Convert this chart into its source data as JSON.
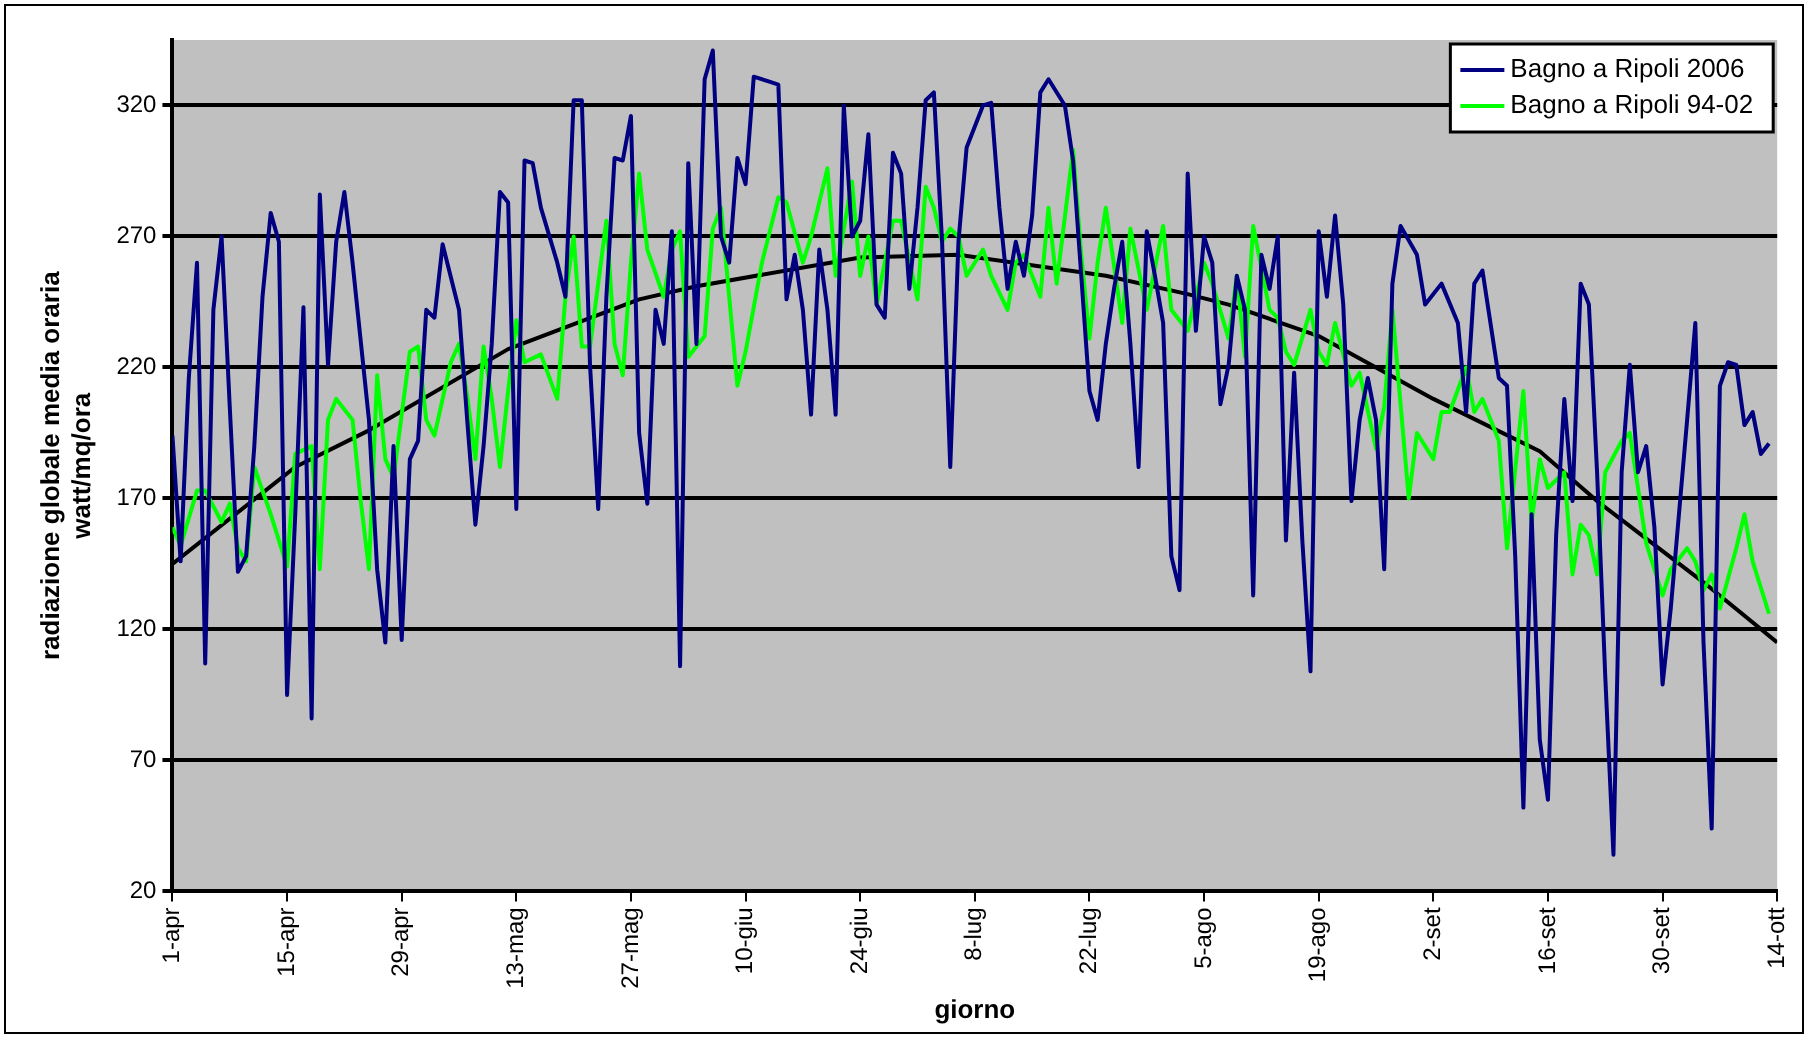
{
  "chart_data": {
    "type": "line",
    "xlabel": "giorno",
    "ylabel": "radiazione globale media oraria\nwatt/mq/ora",
    "xlim": [
      "--04-01",
      "--10-14"
    ],
    "xticks": [
      {
        "value": "--04-01",
        "label": "1-apr"
      },
      {
        "value": "--04-15",
        "label": "15-apr"
      },
      {
        "value": "--04-29",
        "label": "29-apr"
      },
      {
        "value": "--05-13",
        "label": "13-mag"
      },
      {
        "value": "--05-27",
        "label": "27-mag"
      },
      {
        "value": "--06-10",
        "label": "10-giu"
      },
      {
        "value": "--06-24",
        "label": "24-giu"
      },
      {
        "value": "--07-08",
        "label": "8-lug"
      },
      {
        "value": "--07-22",
        "label": "22-lug"
      },
      {
        "value": "--08-05",
        "label": "5-ago"
      },
      {
        "value": "--08-19",
        "label": "19-ago"
      },
      {
        "value": "--09-02",
        "label": "2-set"
      },
      {
        "value": "--09-16",
        "label": "16-set"
      },
      {
        "value": "--09-30",
        "label": "30-set"
      },
      {
        "value": "--10-14",
        "label": "14-ott"
      }
    ],
    "ylim": [
      20,
      345
    ],
    "yticks": [
      20,
      70,
      120,
      170,
      220,
      270,
      320
    ],
    "grid": "y",
    "legend": "top right",
    "marker": "none",
    "line_style": "solid",
    "series": [
      {
        "name": "Bagno a Ripoli 2006",
        "color": "#000080",
        "x": [
          "--04-01",
          "--04-02",
          "--04-03",
          "--04-04",
          "--04-05",
          "--04-06",
          "--04-07",
          "--04-08",
          "--04-09",
          "--04-10",
          "--04-11",
          "--04-12",
          "--04-13",
          "--04-14",
          "--04-15",
          "--04-16",
          "--04-17",
          "--04-18",
          "--04-19",
          "--04-20",
          "--04-21",
          "--04-22",
          "--04-23",
          "--04-25",
          "--04-26",
          "--04-27",
          "--04-28",
          "--04-29",
          "--04-30",
          "--05-01",
          "--05-02",
          "--05-03",
          "--05-04",
          "--05-06",
          "--05-07",
          "--05-08",
          "--05-09",
          "--05-10",
          "--05-11",
          "--05-12",
          "--05-13",
          "--05-14",
          "--05-15",
          "--05-16",
          "--05-18",
          "--05-19",
          "--05-20",
          "--05-21",
          "--05-22",
          "--05-23",
          "--05-24",
          "--05-25",
          "--05-26",
          "--05-27",
          "--05-28",
          "--05-29",
          "--05-30",
          "--05-31",
          "--06-01",
          "--06-02",
          "--06-03",
          "--06-04",
          "--06-05",
          "--06-06",
          "--06-07",
          "--06-08",
          "--06-09",
          "--06-10",
          "--06-11",
          "--06-13",
          "--06-14",
          "--06-15",
          "--06-16",
          "--06-17",
          "--06-18",
          "--06-19",
          "--06-20",
          "--06-21",
          "--06-22",
          "--06-23",
          "--06-24",
          "--06-25",
          "--06-26",
          "--06-27",
          "--06-28",
          "--06-29",
          "--06-30",
          "--07-01",
          "--07-02",
          "--07-03",
          "--07-04",
          "--07-05",
          "--07-06",
          "--07-07",
          "--07-09",
          "--07-10",
          "--07-11",
          "--07-12",
          "--07-13",
          "--07-14",
          "--07-15",
          "--07-16",
          "--07-17",
          "--07-19",
          "--07-20",
          "--07-22",
          "--07-23",
          "--07-24",
          "--07-25",
          "--07-26",
          "--07-27",
          "--07-28",
          "--07-29",
          "--07-30",
          "--07-31",
          "--08-01",
          "--08-02",
          "--08-03",
          "--08-04",
          "--08-05",
          "--08-06",
          "--08-07",
          "--08-08",
          "--08-09",
          "--08-10",
          "--08-11",
          "--08-12",
          "--08-13",
          "--08-14",
          "--08-15",
          "--08-16",
          "--08-17",
          "--08-18",
          "--08-19",
          "--08-20",
          "--08-21",
          "--08-22",
          "--08-23",
          "--08-24",
          "--08-25",
          "--08-26",
          "--08-27",
          "--08-28",
          "--08-29",
          "--08-31",
          "--09-01",
          "--09-03",
          "--09-05",
          "--09-06",
          "--09-07",
          "--09-08",
          "--09-10",
          "--09-11",
          "--09-12",
          "--09-13",
          "--09-14",
          "--09-15",
          "--09-16",
          "--09-17",
          "--09-18",
          "--09-19",
          "--09-20",
          "--09-21",
          "--09-22",
          "--09-23",
          "--09-24",
          "--09-25",
          "--09-26",
          "--09-27",
          "--09-28",
          "--09-29",
          "--09-30",
          "--10-01",
          "--10-03",
          "--10-04",
          "--10-05",
          "--10-06",
          "--10-07",
          "--10-08",
          "--10-09",
          "--10-10",
          "--10-11",
          "--10-12",
          "--10-13"
        ],
        "values": [
          194,
          146,
          216,
          260,
          107,
          242,
          270,
          205,
          142,
          148,
          190,
          247,
          279,
          268,
          95,
          164,
          243,
          86,
          286,
          221,
          268,
          287,
          260,
          200,
          143,
          115,
          190,
          116,
          185,
          192,
          242,
          239,
          267,
          242,
          200,
          160,
          190,
          229,
          287,
          283,
          166,
          299,
          298,
          281,
          260,
          247,
          322,
          322,
          221,
          166,
          247,
          300,
          299,
          316,
          195,
          168,
          242,
          229,
          272,
          106,
          298,
          229,
          330,
          341,
          270,
          260,
          300,
          290,
          331,
          329,
          328,
          246,
          263,
          242,
          202,
          265,
          242,
          202,
          320,
          270,
          276,
          309,
          244,
          239,
          302,
          294,
          250,
          281,
          322,
          325,
          268,
          182,
          268,
          304,
          320,
          321,
          281,
          250,
          268,
          255,
          278,
          325,
          330,
          320,
          299,
          211,
          200,
          229,
          250,
          268,
          229,
          182,
          272,
          255,
          237,
          148,
          135,
          294,
          234,
          270,
          260,
          206,
          221,
          255,
          242,
          133,
          263,
          250,
          270,
          154,
          218,
          154,
          104,
          272,
          247,
          278,
          244,
          169,
          200,
          216,
          200,
          143,
          252,
          274,
          263,
          244,
          252,
          237,
          203,
          252,
          257,
          216,
          213,
          148,
          52,
          164,
          78,
          55,
          156,
          208,
          169,
          252,
          244,
          180,
          102,
          34,
          180,
          221,
          180,
          190,
          159,
          99,
          128,
          200,
          237,
          115,
          44,
          213,
          222,
          221,
          198,
          203,
          187,
          191
        ]
      },
      {
        "name": "Bagno a Ripoli 94-02",
        "color": "#00ff00",
        "x": [
          "--04-01",
          "--04-02",
          "--04-04",
          "--04-05",
          "--04-07",
          "--04-08",
          "--04-09",
          "--04-10",
          "--04-11",
          "--04-13",
          "--04-14",
          "--04-15",
          "--04-16",
          "--04-18",
          "--04-19",
          "--04-20",
          "--04-21",
          "--04-23",
          "--04-24",
          "--04-25",
          "--04-26",
          "--04-27",
          "--04-28",
          "--04-30",
          "--05-01",
          "--05-02",
          "--05-03",
          "--05-05",
          "--05-06",
          "--05-07",
          "--05-08",
          "--05-09",
          "--05-10",
          "--05-11",
          "--05-12",
          "--05-13",
          "--05-14",
          "--05-16",
          "--05-18",
          "--05-19",
          "--05-20",
          "--05-21",
          "--05-22",
          "--05-24",
          "--05-25",
          "--05-26",
          "--05-27",
          "--05-28",
          "--05-29",
          "--05-31",
          "--06-01",
          "--06-02",
          "--06-03",
          "--06-05",
          "--06-06",
          "--06-07",
          "--06-08",
          "--06-09",
          "--06-10",
          "--06-12",
          "--06-14",
          "--06-15",
          "--06-17",
          "--06-18",
          "--06-20",
          "--06-21",
          "--06-23",
          "--06-24",
          "--06-25",
          "--06-26",
          "--06-28",
          "--06-29",
          "--07-01",
          "--07-02",
          "--07-03",
          "--07-04",
          "--07-05",
          "--07-06",
          "--07-07",
          "--07-09",
          "--07-10",
          "--07-12",
          "--07-13",
          "--07-14",
          "--07-16",
          "--07-17",
          "--07-18",
          "--07-20",
          "--07-21",
          "--07-22",
          "--07-23",
          "--07-24",
          "--07-26",
          "--07-27",
          "--07-29",
          "--07-31",
          "--08-01",
          "--08-03",
          "--08-05",
          "--08-06",
          "--08-08",
          "--08-09",
          "--08-10",
          "--08-11",
          "--08-13",
          "--08-14",
          "--08-15",
          "--08-16",
          "--08-18",
          "--08-19",
          "--08-20",
          "--08-21",
          "--08-23",
          "--08-24",
          "--08-26",
          "--08-27",
          "--08-28",
          "--08-30",
          "--08-31",
          "--09-02",
          "--09-03",
          "--09-04",
          "--09-06",
          "--09-07",
          "--09-08",
          "--09-10",
          "--09-11",
          "--09-13",
          "--09-14",
          "--09-15",
          "--09-16",
          "--09-18",
          "--09-19",
          "--09-20",
          "--09-21",
          "--09-22",
          "--09-23",
          "--09-25",
          "--09-26",
          "--09-27",
          "--09-28",
          "--09-30",
          "--10-01",
          "--10-03",
          "--10-04",
          "--10-05",
          "--10-06",
          "--10-07",
          "--10-09",
          "--10-10",
          "--10-11",
          "--10-13"
        ],
        "values": [
          159,
          152,
          173,
          173,
          161,
          168,
          151,
          146,
          182,
          164,
          154,
          144,
          187,
          190,
          143,
          200,
          208,
          200,
          169,
          143,
          217,
          185,
          178,
          226,
          228,
          200,
          194,
          222,
          229,
          209,
          185,
          228,
          208,
          182,
          211,
          238,
          222,
          225,
          208,
          247,
          270,
          228,
          228,
          276,
          229,
          217,
          260,
          294,
          265,
          247,
          265,
          272,
          224,
          232,
          273,
          281,
          247,
          213,
          226,
          260,
          285,
          283,
          260,
          270,
          296,
          255,
          291,
          255,
          270,
          244,
          276,
          276,
          246,
          289,
          281,
          268,
          273,
          270,
          255,
          265,
          255,
          242,
          260,
          263,
          247,
          281,
          252,
          303,
          263,
          231,
          260,
          281,
          237,
          273,
          242,
          274,
          242,
          234,
          260,
          252,
          231,
          255,
          224,
          274,
          242,
          239,
          226,
          221,
          242,
          226,
          221,
          237,
          213,
          218,
          189,
          205,
          242,
          170,
          195,
          185,
          203,
          203,
          220,
          203,
          208,
          192,
          151,
          211,
          161,
          185,
          174,
          180,
          141,
          160,
          156,
          141,
          180,
          192,
          195,
          174,
          153,
          133,
          143,
          151,
          146,
          135,
          141,
          128,
          151,
          164,
          146,
          126
        ]
      },
      {
        "color": "#000000",
        "x": [
          "--04-01",
          "--04-16",
          "--04-25",
          "--05-12",
          "--05-28",
          "--06-04",
          "--06-24",
          "--07-06",
          "--07-24",
          "--08-03",
          "--08-08",
          "--08-19",
          "--09-02",
          "--09-15",
          "--09-22",
          "--10-05",
          "--10-14"
        ],
        "values": [
          145,
          182,
          196,
          227,
          246,
          251,
          262,
          263,
          255,
          248,
          244,
          232,
          208,
          188,
          169,
          138,
          115
        ]
      }
    ]
  }
}
